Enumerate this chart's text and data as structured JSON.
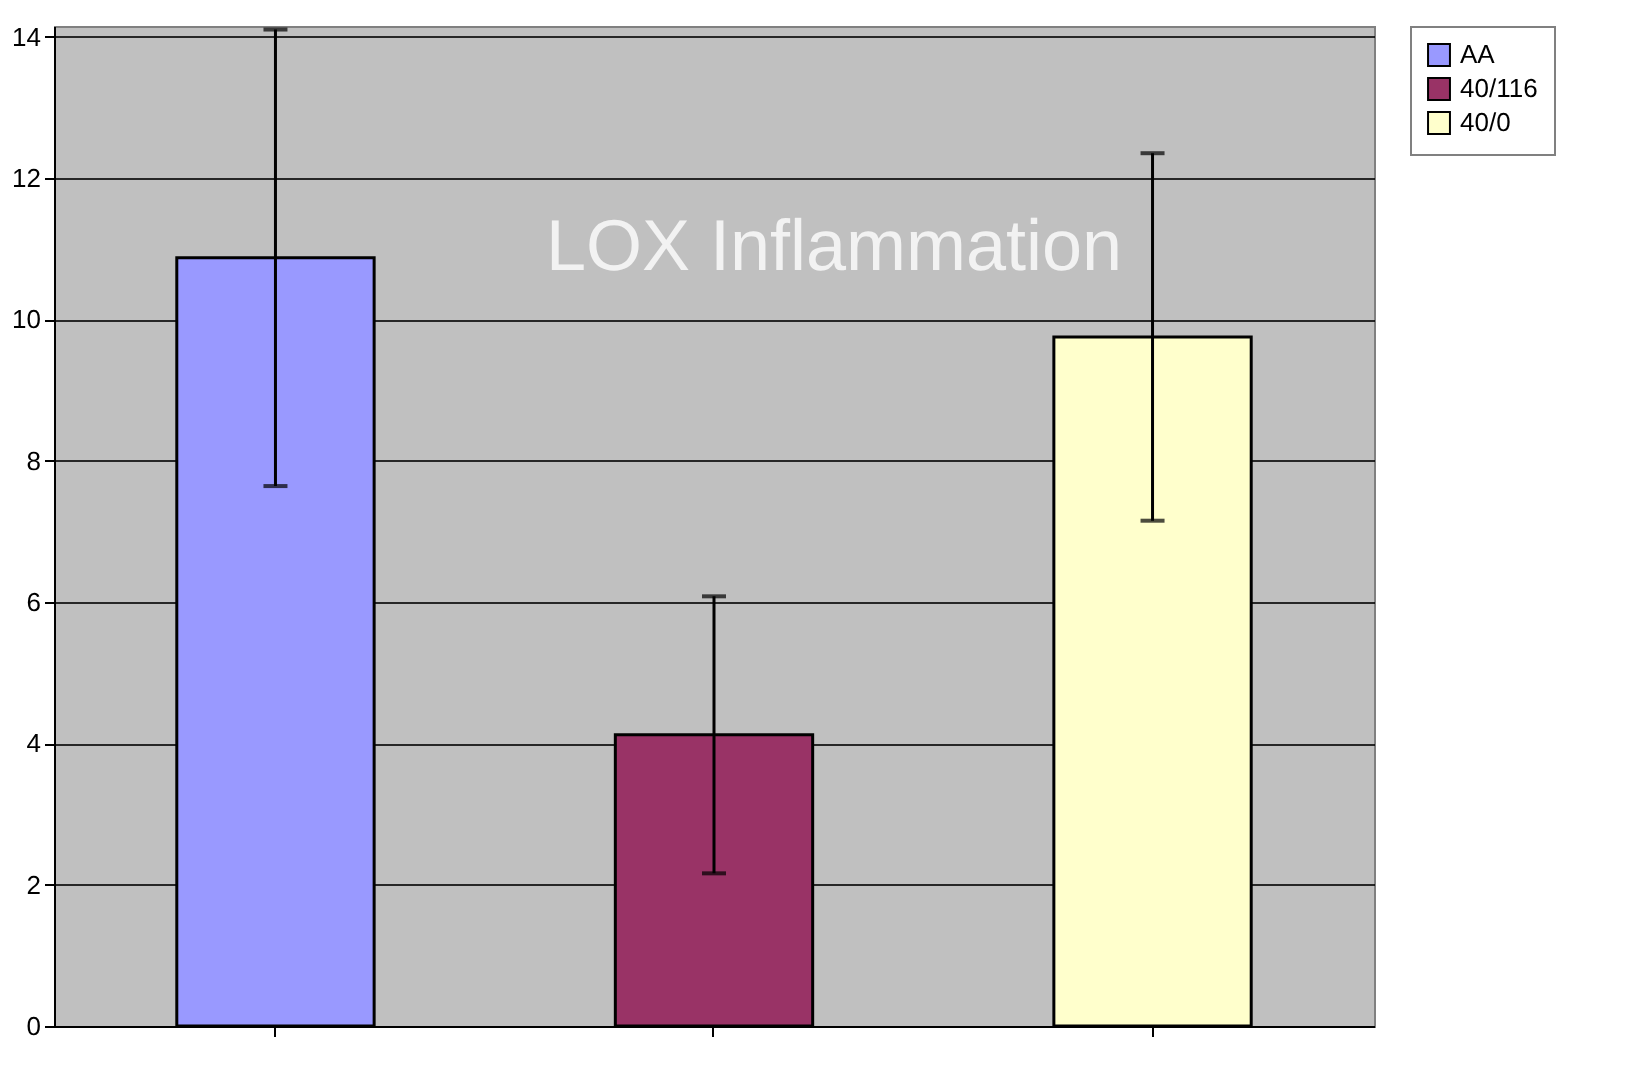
{
  "chart_data": {
    "type": "bar",
    "title": "LOX Inflammation",
    "categories": [
      null,
      null,
      null
    ],
    "series": [
      {
        "name": "AA",
        "color": "#9999ff",
        "values": [
          10.87,
          null,
          null
        ],
        "errors": [
          3.23,
          null,
          null
        ]
      },
      {
        "name": "40/116",
        "color": "#993366",
        "values": [
          null,
          4.12,
          null
        ],
        "errors": [
          null,
          1.96,
          null
        ]
      },
      {
        "name": "40/0",
        "color": "#ffffcc",
        "values": [
          null,
          null,
          9.75
        ],
        "errors": [
          null,
          null,
          2.6
        ]
      }
    ],
    "ylim": [
      0,
      14.15
    ],
    "yticks": [
      0,
      2,
      4,
      6,
      8,
      10,
      12,
      14
    ],
    "grid": "y",
    "legend": "top right",
    "tick_labels": "y"
  }
}
